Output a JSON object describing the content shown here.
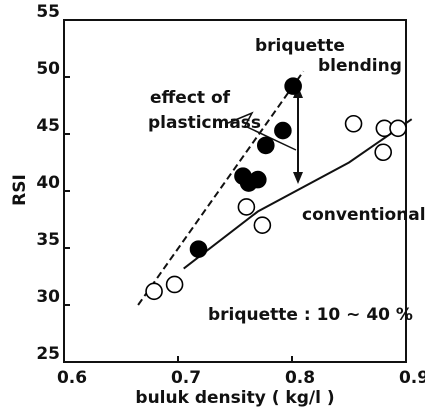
{
  "chart_data": {
    "type": "scatter",
    "xlabel": "buluk density ( kg/l )",
    "ylabel": "RSI",
    "xlim": [
      0.6,
      0.9
    ],
    "xticks": [
      0.6,
      0.7,
      0.8,
      0.9
    ],
    "ylim": [
      25,
      55
    ],
    "yticks": [
      25,
      30,
      35,
      40,
      45,
      50,
      55
    ],
    "series": [
      {
        "marker": "filled",
        "color": "#000000",
        "x": [
          0.718,
          0.757,
          0.762,
          0.77,
          0.777,
          0.792,
          0.801
        ],
        "values": [
          34.9,
          41.3,
          40.7,
          41.0,
          44.0,
          45.3,
          49.2
        ]
      },
      {
        "marker": "open",
        "color": "#000000",
        "x": [
          0.679,
          0.697,
          0.76,
          0.774,
          0.854,
          0.881,
          0.88,
          0.893
        ],
        "values": [
          31.2,
          31.8,
          38.6,
          37.0,
          45.9,
          45.5,
          43.4,
          45.5
        ]
      }
    ],
    "lines": [
      {
        "dashed": true,
        "x": [
          0.665,
          0.81
        ],
        "values": [
          30.0,
          50.5
        ]
      },
      {
        "dashed": false,
        "x": [
          0.705,
          0.77,
          0.85,
          0.905
        ],
        "values": [
          33.2,
          38.2,
          42.5,
          46.3
        ]
      }
    ],
    "annotations": [
      "briquette",
      "blending",
      "effect of",
      "plasticmass",
      "conventional",
      "briquette : 10 ~ 40 %"
    ]
  }
}
